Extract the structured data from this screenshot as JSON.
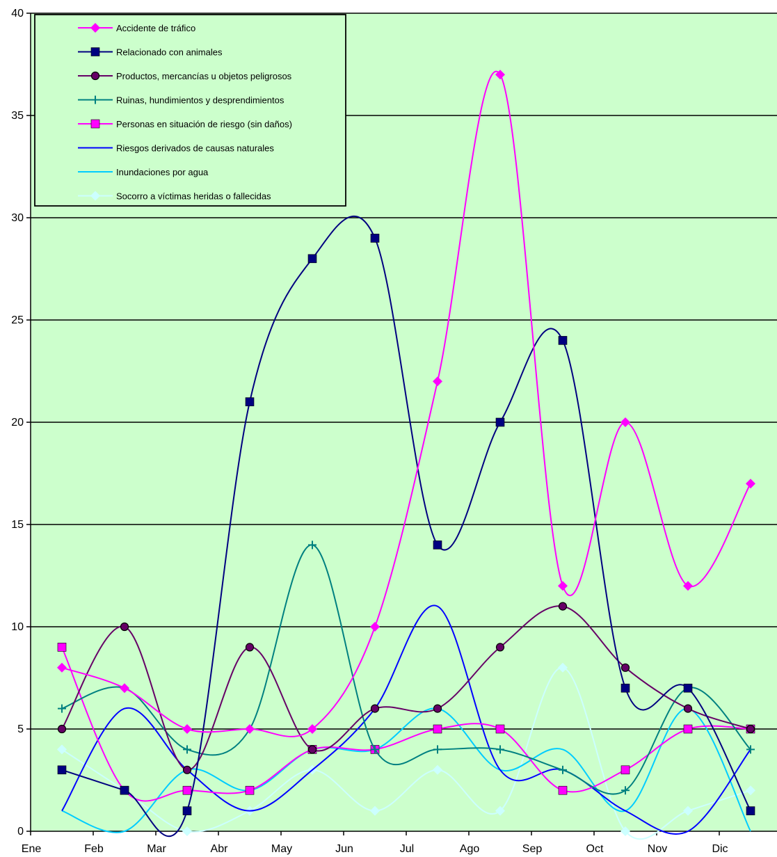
{
  "chart_data": {
    "type": "line",
    "title": "",
    "xlabel": "",
    "ylabel": "",
    "ylim": [
      0,
      40
    ],
    "yticks": [
      0,
      5,
      10,
      15,
      20,
      25,
      30,
      35,
      40
    ],
    "grid": true,
    "legend_position": "top-left",
    "categories": [
      "Ene",
      "Feb",
      "Mar",
      "Abr",
      "May",
      "Jun",
      "Jul",
      "Ago",
      "Sep",
      "Oct",
      "Nov",
      "Dic"
    ],
    "plot_background": "#ccffcc",
    "series": [
      {
        "name": "Accidente de tráfico",
        "color": "#ff00ff",
        "marker": "diamond",
        "values": [
          8,
          7,
          5,
          5,
          5,
          10,
          22,
          37,
          12,
          20,
          12,
          17
        ]
      },
      {
        "name": "Relacionado con animales",
        "color": "#000080",
        "marker": "square",
        "values": [
          3,
          2,
          1,
          21,
          28,
          29,
          14,
          20,
          24,
          7,
          7,
          1
        ]
      },
      {
        "name": "Productos, mercancías u objetos peligrosos",
        "color": "#660066",
        "marker": "circle",
        "values": [
          5,
          10,
          3,
          9,
          4,
          6,
          6,
          9,
          11,
          8,
          6,
          5
        ]
      },
      {
        "name": "Ruinas, hundimientos y desprendimientos",
        "color": "#008080",
        "marker": "plus",
        "values": [
          6,
          7,
          4,
          5,
          14,
          4,
          4,
          4,
          3,
          2,
          7,
          4
        ]
      },
      {
        "name": "Personas en situación de riesgo (sin daños)",
        "color": "#ff00ff",
        "marker": "square",
        "values": [
          9,
          2,
          2,
          2,
          4,
          4,
          5,
          5,
          2,
          3,
          5,
          5
        ]
      },
      {
        "name": "Riesgos derivados de causas naturales",
        "color": "#0000ff",
        "marker": "none",
        "values": [
          1,
          6,
          3,
          1,
          3,
          6,
          11,
          3,
          3,
          1,
          0,
          4
        ]
      },
      {
        "name": "Inundaciones por agua",
        "color": "#00ccff",
        "marker": "none",
        "values": [
          1,
          0,
          3,
          2,
          4,
          4,
          6,
          3,
          4,
          1,
          6,
          0
        ]
      },
      {
        "name": "Socorro a víctimas heridas o fallecidas",
        "color": "#ccffff",
        "marker": "diamond",
        "values": [
          4,
          2,
          0,
          1,
          3,
          1,
          3,
          1,
          8,
          0,
          1,
          2
        ]
      }
    ]
  }
}
